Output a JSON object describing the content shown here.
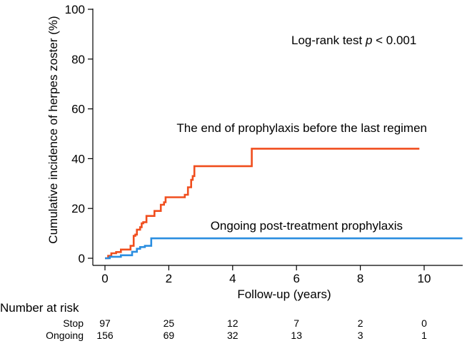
{
  "chart_data": {
    "type": "line",
    "step": true,
    "ylabel": "Cumulative incidence of herpes zoster (%)",
    "xlabel": "Follow-up (years)",
    "xlim": [
      0,
      11.2
    ],
    "ylim": [
      0,
      100
    ],
    "x_ticks": [
      0,
      2,
      4,
      6,
      8,
      10
    ],
    "y_ticks": [
      0,
      20,
      40,
      60,
      80,
      100
    ],
    "x_tick_labels": [
      "0",
      "2",
      "4",
      "6",
      "8",
      "10"
    ],
    "y_tick_labels": [
      "0",
      "20",
      "40",
      "60",
      "80",
      "100"
    ],
    "grid": false,
    "annotation": {
      "prefix": "Log-rank test ",
      "italic": "p",
      "suffix": " < 0.001"
    },
    "series": [
      {
        "name": "The end of prophylaxis before the last regimen",
        "color": "#f04e1e",
        "x": [
          0,
          0.1,
          0.2,
          0.35,
          0.5,
          0.8,
          0.9,
          0.95,
          1.0,
          1.1,
          1.15,
          1.2,
          1.3,
          1.55,
          1.75,
          1.85,
          1.9,
          2.5,
          2.6,
          2.7,
          2.75,
          2.8,
          4.6,
          9.85
        ],
        "y": [
          0,
          1.0,
          2.0,
          2.5,
          3.5,
          5.0,
          9.0,
          9.5,
          11.5,
          12.5,
          14.0,
          14.5,
          17.0,
          19.0,
          21.5,
          22.5,
          24.5,
          25.5,
          28.5,
          31.5,
          33.0,
          37.0,
          44.0,
          44.0
        ]
      },
      {
        "name": "Ongoing post-treatment prophylaxis",
        "color": "#2b8ee0",
        "x": [
          0,
          0.15,
          0.5,
          0.85,
          1.0,
          1.1,
          1.25,
          1.45,
          11.2
        ],
        "y": [
          0,
          0.6,
          1.2,
          2.6,
          3.8,
          4.5,
          5.0,
          8.0,
          8.0
        ]
      }
    ],
    "risk_table": {
      "title": "Number at risk",
      "times": [
        0,
        2,
        4,
        6,
        8,
        10
      ],
      "rows": [
        {
          "label": "Stop",
          "values": [
            "97",
            "25",
            "12",
            "7",
            "2",
            "0"
          ]
        },
        {
          "label": "Ongoing",
          "values": [
            "156",
            "69",
            "32",
            "13",
            "3",
            "1"
          ]
        }
      ]
    }
  }
}
